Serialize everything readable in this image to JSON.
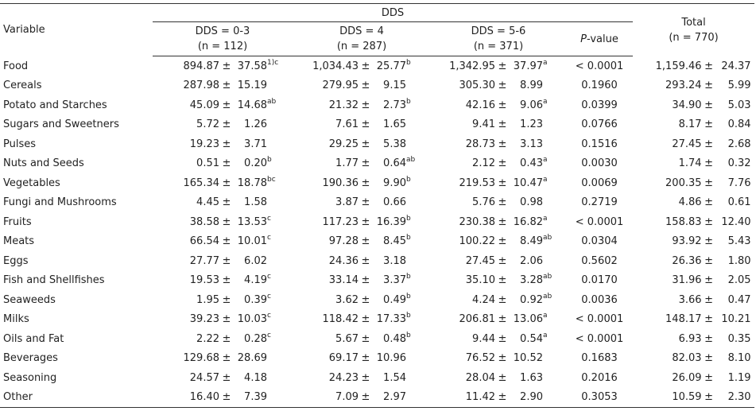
{
  "header": {
    "variable": "Variable",
    "dds": "DDS",
    "groups": [
      {
        "label": "DDS = 0-3",
        "n": "(n = 112)"
      },
      {
        "label": "DDS = 4",
        "n": "(n = 287)"
      },
      {
        "label": "DDS = 5-6",
        "n": "(n = 371)"
      }
    ],
    "pvalue_italic": "P",
    "pvalue_rest": "-value",
    "total": "Total",
    "total_n": "(n = 770)"
  },
  "rows": [
    {
      "name": "Food",
      "g": [
        [
          "894.87",
          "37.58",
          "1)c"
        ],
        [
          "1,034.43",
          "25.77",
          "b"
        ],
        [
          "1,342.95",
          "37.97",
          "a"
        ]
      ],
      "p": "< 0.0001",
      "t": [
        "1,159.46",
        "24.37"
      ]
    },
    {
      "name": "Cereals",
      "g": [
        [
          "287.98",
          "15.19",
          ""
        ],
        [
          "279.95",
          "9.15",
          ""
        ],
        [
          "305.30",
          "8.99",
          ""
        ]
      ],
      "p": "0.1960",
      "t": [
        "293.24",
        "5.99"
      ]
    },
    {
      "name": "Potato and Starches",
      "g": [
        [
          "45.09",
          "14.68",
          "ab"
        ],
        [
          "21.32",
          "2.73",
          "b"
        ],
        [
          "42.16",
          "9.06",
          "a"
        ]
      ],
      "p": "0.0399",
      "t": [
        "34.90",
        "5.03"
      ]
    },
    {
      "name": "Sugars and Sweetners",
      "g": [
        [
          "5.72",
          "1.26",
          ""
        ],
        [
          "7.61",
          "1.65",
          ""
        ],
        [
          "9.41",
          "1.23",
          ""
        ]
      ],
      "p": "0.0766",
      "t": [
        "8.17",
        "0.84"
      ]
    },
    {
      "name": "Pulses",
      "g": [
        [
          "19.23",
          "3.71",
          ""
        ],
        [
          "29.25",
          "5.38",
          ""
        ],
        [
          "28.73",
          "3.13",
          ""
        ]
      ],
      "p": "0.1516",
      "t": [
        "27.45",
        "2.68"
      ]
    },
    {
      "name": "Nuts and Seeds",
      "g": [
        [
          "0.51",
          "0.20",
          "b"
        ],
        [
          "1.77",
          "0.64",
          "ab"
        ],
        [
          "2.12",
          "0.43",
          "a"
        ]
      ],
      "p": "0.0030",
      "t": [
        "1.74",
        "0.32"
      ]
    },
    {
      "name": "Vegetables",
      "g": [
        [
          "165.34",
          "18.78",
          "bc"
        ],
        [
          "190.36",
          "9.90",
          "b"
        ],
        [
          "219.53",
          "10.47",
          "a"
        ]
      ],
      "p": "0.0069",
      "t": [
        "200.35",
        "7.76"
      ]
    },
    {
      "name": "Fungi and Mushrooms",
      "g": [
        [
          "4.45",
          "1.58",
          ""
        ],
        [
          "3.87",
          "0.66",
          ""
        ],
        [
          "5.76",
          "0.98",
          ""
        ]
      ],
      "p": "0.2719",
      "t": [
        "4.86",
        "0.61"
      ]
    },
    {
      "name": "Fruits",
      "g": [
        [
          "38.58",
          "13.53",
          "c"
        ],
        [
          "117.23",
          "16.39",
          "b"
        ],
        [
          "230.38",
          "16.82",
          "a"
        ]
      ],
      "p": "< 0.0001",
      "t": [
        "158.83",
        "12.40"
      ]
    },
    {
      "name": "Meats",
      "g": [
        [
          "66.54",
          "10.01",
          "c"
        ],
        [
          "97.28",
          "8.45",
          "b"
        ],
        [
          "100.22",
          "8.49",
          "ab"
        ]
      ],
      "p": "0.0304",
      "t": [
        "93.92",
        "5.43"
      ]
    },
    {
      "name": "Eggs",
      "g": [
        [
          "27.77",
          "6.02",
          ""
        ],
        [
          "24.36",
          "3.18",
          ""
        ],
        [
          "27.45",
          "2.06",
          ""
        ]
      ],
      "p": "0.5602",
      "t": [
        "26.36",
        "1.80"
      ]
    },
    {
      "name": "Fish and Shellfishes",
      "g": [
        [
          "19.53",
          "4.19",
          "c"
        ],
        [
          "33.14",
          "3.37",
          "b"
        ],
        [
          "35.10",
          "3.28",
          "ab"
        ]
      ],
      "p": "0.0170",
      "t": [
        "31.96",
        "2.05"
      ]
    },
    {
      "name": "Seaweeds",
      "g": [
        [
          "1.95",
          "0.39",
          "c"
        ],
        [
          "3.62",
          "0.49",
          "b"
        ],
        [
          "4.24",
          "0.92",
          "ab"
        ]
      ],
      "p": "0.0036",
      "t": [
        "3.66",
        "0.47"
      ]
    },
    {
      "name": "Milks",
      "g": [
        [
          "39.23",
          "10.03",
          "c"
        ],
        [
          "118.42",
          "17.33",
          "b"
        ],
        [
          "206.81",
          "13.06",
          "a"
        ]
      ],
      "p": "< 0.0001",
      "t": [
        "148.17",
        "10.21"
      ]
    },
    {
      "name": "Oils and Fat",
      "g": [
        [
          "2.22",
          "0.28",
          "c"
        ],
        [
          "5.67",
          "0.48",
          "b"
        ],
        [
          "9.44",
          "0.54",
          "a"
        ]
      ],
      "p": "< 0.0001",
      "t": [
        "6.93",
        "0.35"
      ]
    },
    {
      "name": "Beverages",
      "g": [
        [
          "129.68",
          "28.69",
          ""
        ],
        [
          "69.17",
          "10.96",
          ""
        ],
        [
          "76.52",
          "10.52",
          ""
        ]
      ],
      "p": "0.1683",
      "t": [
        "82.03",
        "8.10"
      ]
    },
    {
      "name": "Seasoning",
      "g": [
        [
          "24.57",
          "4.18",
          ""
        ],
        [
          "24.23",
          "1.54",
          ""
        ],
        [
          "28.04",
          "1.63",
          ""
        ]
      ],
      "p": "0.2016",
      "t": [
        "26.09",
        "1.19"
      ]
    },
    {
      "name": "Other",
      "g": [
        [
          "16.40",
          "7.39",
          ""
        ],
        [
          "7.09",
          "2.97",
          ""
        ],
        [
          "11.42",
          "2.90",
          ""
        ]
      ],
      "p": "0.3053",
      "t": [
        "10.59",
        "2.30"
      ]
    }
  ],
  "pm_symbol": "±"
}
